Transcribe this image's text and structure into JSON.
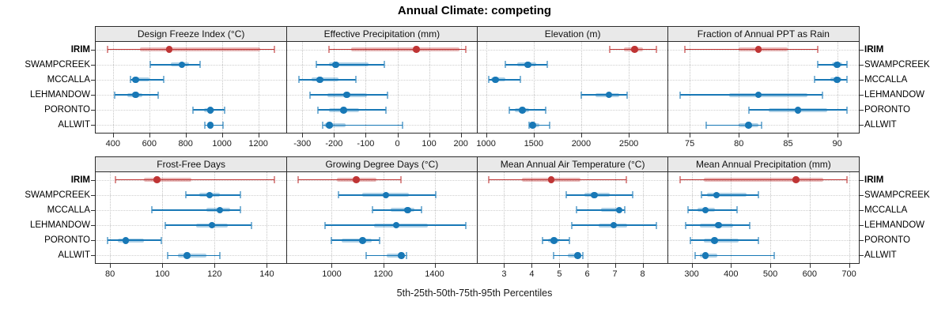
{
  "title": "Annual Climate: competing",
  "caption": "5th-25th-50th-75th-95th Percentiles",
  "sites": [
    "IRIM",
    "SWAMPCREEK",
    "MCCALLA",
    "LEHMANDOW",
    "PORONTO",
    "ALLWIT"
  ],
  "highlight_site": "IRIM",
  "colors": {
    "highlight": "#bf3434",
    "normal": "#1878b6",
    "grid": "#c4c4c4",
    "strip_bg": "#e9e9e9",
    "border": "#2b2b2b"
  },
  "chart_data": {
    "type": "dotplot-percentiles",
    "percentile_labels": [
      "5th",
      "25th",
      "50th",
      "75th",
      "95th"
    ],
    "legend_note": "IRIM shown in red (highlight), all other sites in blue",
    "panels": [
      {
        "title": "Design Freeze Index (°C)",
        "xlim": [
          305,
          1355
        ],
        "ticks": [
          400,
          600,
          800,
          1000,
          1200
        ],
        "series": [
          {
            "site": "IRIM",
            "p": [
              370,
              550,
              710,
              1210,
              1290
            ]
          },
          {
            "site": "SWAMPCREEK",
            "p": [
              605,
              720,
              780,
              820,
              880
            ]
          },
          {
            "site": "MCCALLA",
            "p": [
              495,
              505,
              525,
              600,
              680
            ]
          },
          {
            "site": "LEHMANDOW",
            "p": [
              410,
              480,
              525,
              560,
              650
            ]
          },
          {
            "site": "PORONTO",
            "p": [
              840,
              900,
              935,
              960,
              1015
            ]
          },
          {
            "site": "ALLWIT",
            "p": [
              905,
              920,
              935,
              950,
              1005
            ]
          }
        ]
      },
      {
        "title": "Effective Precipitation (mm)",
        "xlim": [
          -350,
          252
        ],
        "ticks": [
          -300,
          -200,
          -100,
          0,
          100,
          200
        ],
        "series": [
          {
            "site": "IRIM",
            "p": [
              -215,
              -145,
              60,
              195,
              215
            ]
          },
          {
            "site": "SWAMPCREEK",
            "p": [
              -255,
              -215,
              -195,
              -90,
              -40
            ]
          },
          {
            "site": "MCCALLA",
            "p": [
              -310,
              -270,
              -245,
              -185,
              -130
            ]
          },
          {
            "site": "LEHMANDOW",
            "p": [
              -275,
              -220,
              -160,
              -95,
              -30
            ]
          },
          {
            "site": "PORONTO",
            "p": [
              -250,
              -215,
              -170,
              -120,
              -35
            ]
          },
          {
            "site": "ALLWIT",
            "p": [
              -235,
              -230,
              -215,
              -163,
              15
            ]
          }
        ]
      },
      {
        "title": "Elevation (m)",
        "xlim": [
          907,
          2913
        ],
        "ticks": [
          1000,
          1500,
          2000,
          2500
        ],
        "series": [
          {
            "site": "IRIM",
            "p": [
              2300,
              2450,
              2560,
              2650,
              2790
            ]
          },
          {
            "site": "SWAMPCREEK",
            "p": [
              1200,
              1330,
              1440,
              1530,
              1640
            ]
          },
          {
            "site": "MCCALLA",
            "p": [
              1030,
              1050,
              1100,
              1200,
              1360
            ]
          },
          {
            "site": "LEHMANDOW",
            "p": [
              2000,
              2150,
              2290,
              2400,
              2480
            ]
          },
          {
            "site": "PORONTO",
            "p": [
              1240,
              1300,
              1380,
              1450,
              1630
            ]
          },
          {
            "site": "ALLWIT",
            "p": [
              1450,
              1470,
              1490,
              1560,
              1670
            ]
          }
        ]
      },
      {
        "title": "Fraction of Annual PPT as Rain",
        "xlim": [
          72.8,
          92.2
        ],
        "ticks": [
          75,
          80,
          85,
          90
        ],
        "series": [
          {
            "site": "IRIM",
            "p": [
              74.5,
              80,
              82,
              85,
              88
            ]
          },
          {
            "site": "SWAMPCREEK",
            "p": [
              88,
              89.5,
              90,
              90.5,
              91
            ]
          },
          {
            "site": "MCCALLA",
            "p": [
              87.7,
              89.3,
              90,
              90.4,
              91
            ]
          },
          {
            "site": "LEHMANDOW",
            "p": [
              74,
              79,
              82,
              87,
              88.5
            ]
          },
          {
            "site": "PORONTO",
            "p": [
              81,
              83,
              86,
              89,
              91
            ]
          },
          {
            "site": "ALLWIT",
            "p": [
              76.7,
              80,
              81,
              82,
              82.3
            ]
          }
        ]
      },
      {
        "title": "Frost-Free Days",
        "xlim": [
          74.5,
          147.5
        ],
        "ticks": [
          80,
          100,
          120,
          140
        ],
        "series": [
          {
            "site": "IRIM",
            "p": [
              82,
              93,
              98,
              111,
              143
            ]
          },
          {
            "site": "SWAMPCREEK",
            "p": [
              109,
              114,
              118,
              122,
              130
            ]
          },
          {
            "site": "MCCALLA",
            "p": [
              96,
              117,
              122,
              126,
              130
            ]
          },
          {
            "site": "LEHMANDOW",
            "p": [
              101,
              113,
              119,
              125,
              134
            ]
          },
          {
            "site": "PORONTO",
            "p": [
              79,
              83,
              86,
              93,
              99.5
            ]
          },
          {
            "site": "ALLWIT",
            "p": [
              102,
              106,
              109.5,
              117,
              122
            ]
          }
        ]
      },
      {
        "title": "Growing Degree Days (°C)",
        "xlim": [
          824,
          1566
        ],
        "ticks": [
          1000,
          1200,
          1400
        ],
        "series": [
          {
            "site": "IRIM",
            "p": [
              870,
              1020,
              1095,
              1175,
              1270
            ]
          },
          {
            "site": "SWAMPCREEK",
            "p": [
              1025,
              1120,
              1210,
              1300,
              1405
            ]
          },
          {
            "site": "MCCALLA",
            "p": [
              1160,
              1230,
              1295,
              1320,
              1350
            ]
          },
          {
            "site": "LEHMANDOW",
            "p": [
              975,
              1165,
              1250,
              1375,
              1520
            ]
          },
          {
            "site": "PORONTO",
            "p": [
              1000,
              1040,
              1120,
              1155,
              1185
            ]
          },
          {
            "site": "ALLWIT",
            "p": [
              1135,
              1215,
              1270,
              1285,
              1290
            ]
          }
        ]
      },
      {
        "title": "Mean Annual Air Temperature (°C)",
        "xlim": [
          2.03,
          8.92
        ],
        "ticks": [
          3,
          4,
          5,
          6,
          7,
          8
        ],
        "series": [
          {
            "site": "IRIM",
            "p": [
              2.45,
              3.65,
              4.7,
              5.75,
              7.4
            ]
          },
          {
            "site": "SWAMPCREEK",
            "p": [
              5.25,
              5.9,
              6.25,
              6.8,
              7.65
            ]
          },
          {
            "site": "MCCALLA",
            "p": [
              5.6,
              6.5,
              7.15,
              7.25,
              7.35
            ]
          },
          {
            "site": "LEHMANDOW",
            "p": [
              5.45,
              6.4,
              6.95,
              7.45,
              8.5
            ]
          },
          {
            "site": "PORONTO",
            "p": [
              4.4,
              4.6,
              4.8,
              5.0,
              5.35
            ]
          },
          {
            "site": "ALLWIT",
            "p": [
              4.8,
              5.3,
              5.65,
              5.8,
              5.85
            ]
          }
        ]
      },
      {
        "title": "Mean Annual Precipitation (mm)",
        "xlim": [
          240,
          725
        ],
        "ticks": [
          300,
          400,
          500,
          600,
          700
        ],
        "series": [
          {
            "site": "IRIM",
            "p": [
              270,
              330,
              565,
              635,
              695
            ]
          },
          {
            "site": "SWAMPCREEK",
            "p": [
              325,
              340,
              363,
              440,
              470
            ]
          },
          {
            "site": "MCCALLA",
            "p": [
              290,
              315,
              335,
              360,
              415
            ]
          },
          {
            "site": "LEHMANDOW",
            "p": [
              285,
              320,
              368,
              405,
              448
            ]
          },
          {
            "site": "PORONTO",
            "p": [
              297,
              330,
              358,
              420,
              470
            ]
          },
          {
            "site": "ALLWIT",
            "p": [
              308,
              320,
              335,
              365,
              510
            ]
          }
        ]
      }
    ]
  }
}
